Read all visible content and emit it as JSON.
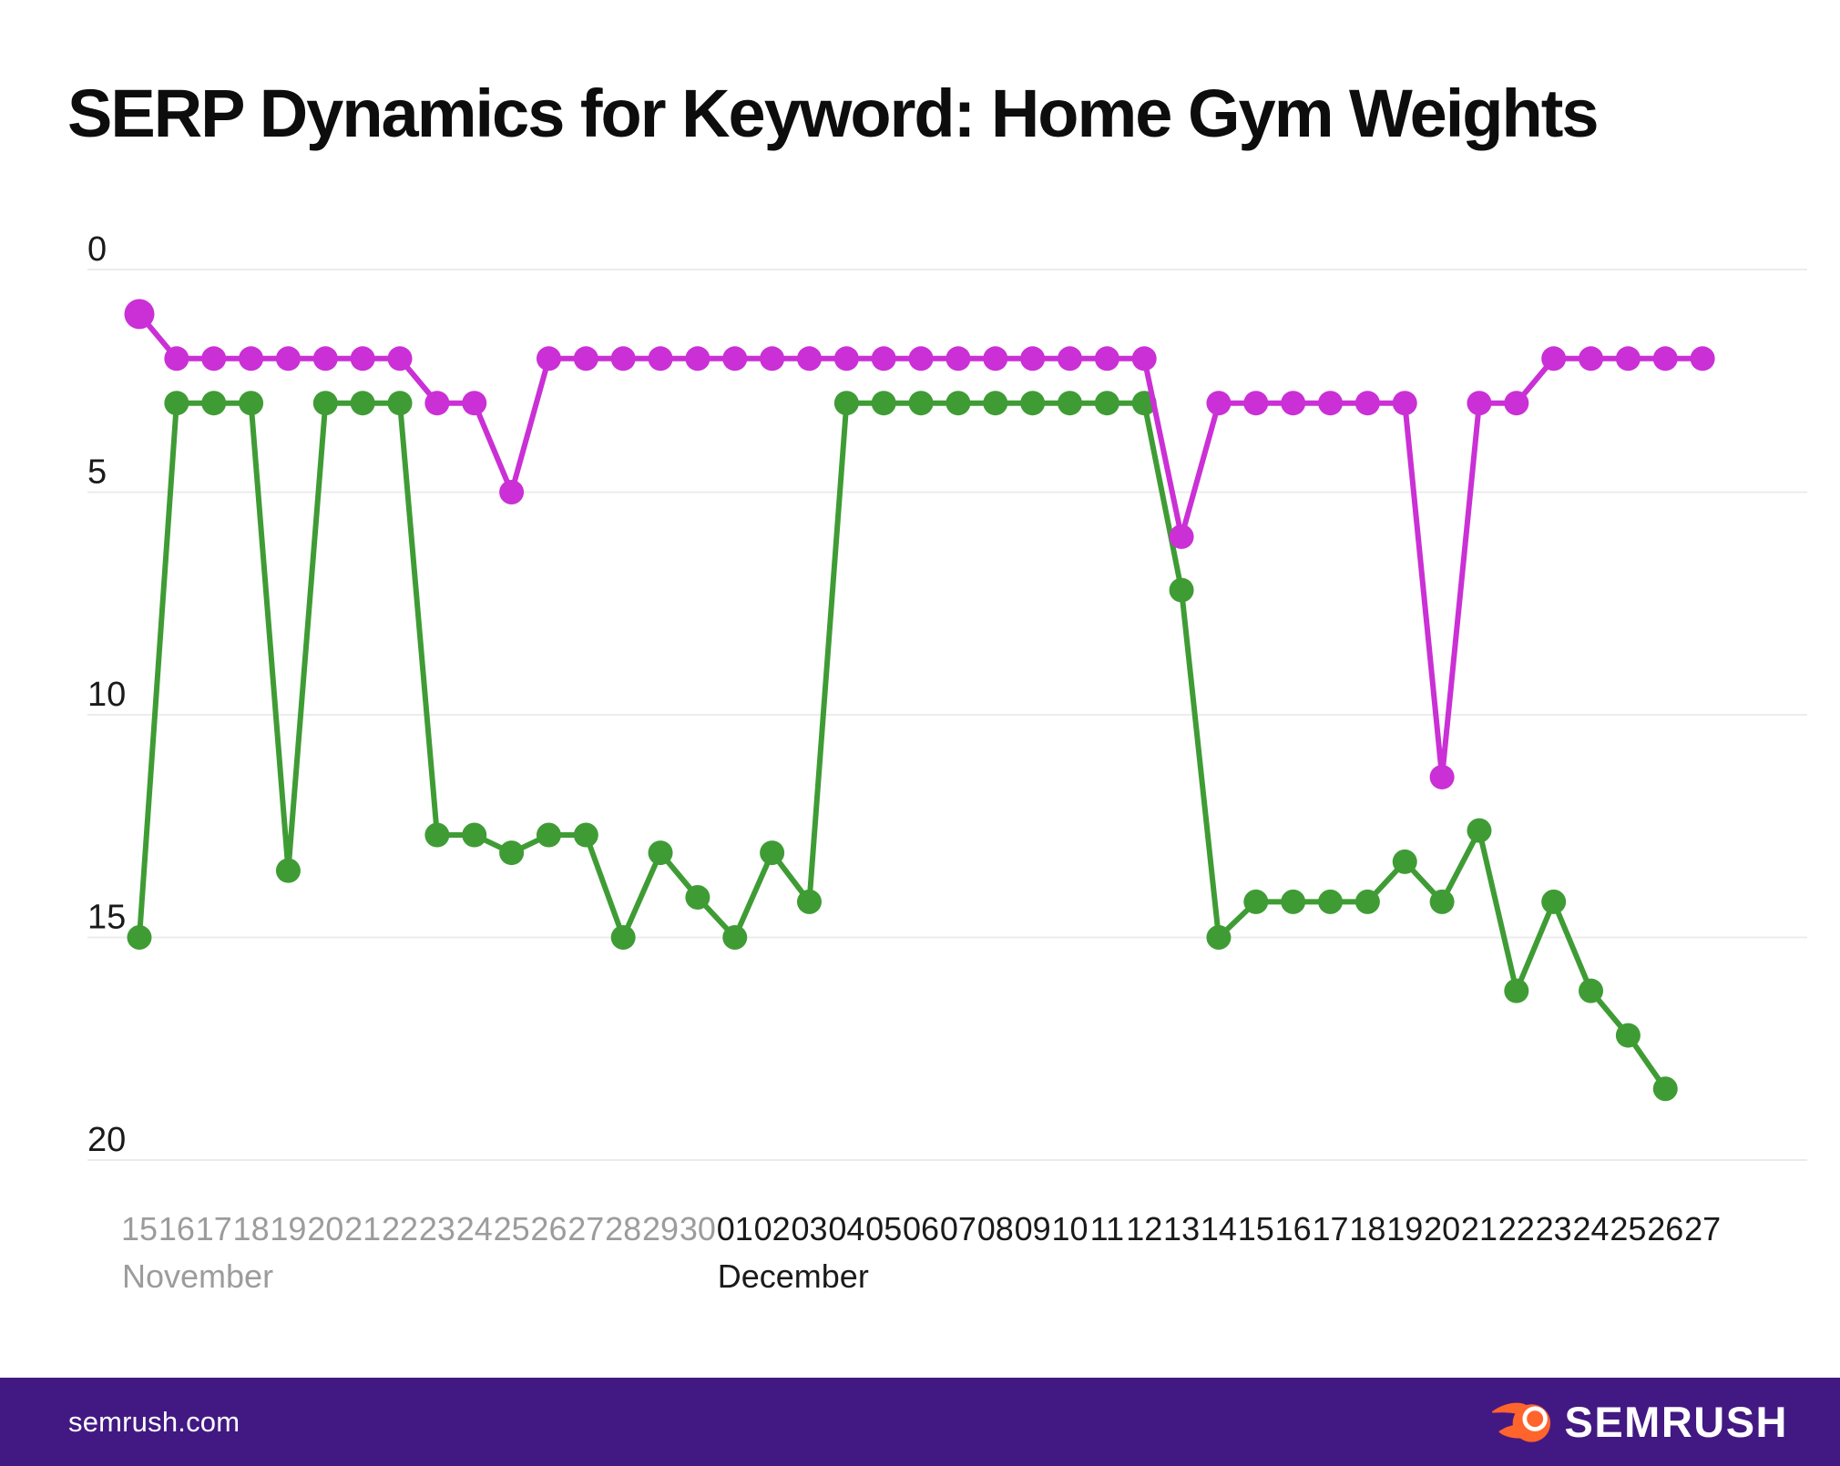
{
  "title": "SERP Dynamics for Keyword: Home Gym Weights",
  "footer": {
    "site": "semrush.com",
    "logo_text": "SEMRUSH",
    "bar_color": "#421983",
    "flame_color": "#ff642d"
  },
  "chart_data": {
    "type": "line",
    "title": "SERP Dynamics for Keyword: Home Gym Weights",
    "y_inverted": true,
    "ylim": [
      0,
      20
    ],
    "y_ticks": [
      0,
      5,
      10,
      15,
      20
    ],
    "grid": true,
    "legend": "none",
    "x_tick_labels": [
      "15",
      "16",
      "17",
      "18",
      "19",
      "20",
      "21",
      "22",
      "23",
      "24",
      "25",
      "26",
      "27",
      "28",
      "29",
      "30",
      "01",
      "02",
      "03",
      "04",
      "05",
      "06",
      "07",
      "08",
      "09",
      "10",
      "11",
      "12",
      "13",
      "14",
      "15",
      "16",
      "17",
      "18",
      "19",
      "20",
      "21",
      "22",
      "23",
      "24",
      "25",
      "26",
      "27"
    ],
    "months": [
      {
        "label": "November",
        "days": 16,
        "start_index": 0,
        "color": "#9c9c9c"
      },
      {
        "label": "December",
        "days": 27,
        "start_index": 16,
        "color": "#1a1a1a"
      }
    ],
    "axis_label_color": "#1a1a1a",
    "gridline_color": "#ececec",
    "series": [
      {
        "name": "green",
        "color": "#3f9c35",
        "values": [
          15,
          3,
          3,
          3,
          13.5,
          3,
          3,
          3,
          12.7,
          12.7,
          13.1,
          12.7,
          12.7,
          15,
          13.1,
          14.1,
          15,
          13.1,
          14.2,
          3,
          3,
          3,
          3,
          3,
          3,
          3,
          3,
          3,
          7.2,
          15,
          14.2,
          14.2,
          14.2,
          14.2,
          13.3,
          14.2,
          12.6,
          16.2,
          14.2,
          16.2,
          17.2,
          18.4,
          null
        ]
      },
      {
        "name": "magenta",
        "color": "#ca30d5",
        "values": [
          1,
          2,
          2,
          2,
          2,
          2,
          2,
          2,
          3,
          3,
          5,
          2,
          2,
          2,
          2,
          2,
          2,
          2,
          2,
          2,
          2,
          2,
          2,
          2,
          2,
          2,
          2,
          2,
          6,
          3,
          3,
          3,
          3,
          3,
          3,
          11.4,
          3,
          3,
          2,
          2,
          2,
          2,
          2
        ]
      }
    ]
  }
}
